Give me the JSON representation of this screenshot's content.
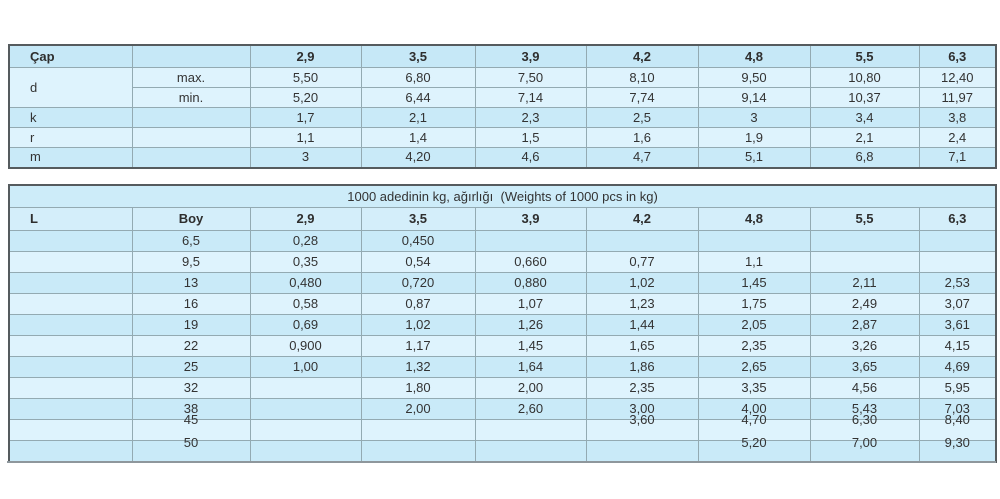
{
  "colors": {
    "header_bg": "#c6e8f7",
    "subheader_bg": "#d4eefa",
    "title_bg": "#cdecf9",
    "row_light": "#def3fd",
    "row_mid": "#c9eaf8",
    "grid_border": "#93aab2",
    "outer_border": "#555b5e",
    "shadow_line": "#8e979c",
    "text": "#333333"
  },
  "dimensions_table": {
    "corner_label": "Çap",
    "col_headers": [
      "2,9",
      "3,5",
      "3,9",
      "4,2",
      "4,8",
      "5,5",
      "6,3"
    ],
    "rows": [
      {
        "label": "d",
        "sub": "max.",
        "values": [
          "5,50",
          "6,80",
          "7,50",
          "8,10",
          "9,50",
          "10,80",
          "12,40"
        ]
      },
      {
        "label": "",
        "sub": "min.",
        "values": [
          "5,20",
          "6,44",
          "7,14",
          "7,74",
          "9,14",
          "10,37",
          "11,97"
        ]
      },
      {
        "label": "k",
        "sub": "",
        "values": [
          "1,7",
          "2,1",
          "2,3",
          "2,5",
          "3",
          "3,4",
          "3,8"
        ]
      },
      {
        "label": "r",
        "sub": "",
        "values": [
          "1,1",
          "1,4",
          "1,5",
          "1,6",
          "1,9",
          "2,1",
          "2,4"
        ]
      },
      {
        "label": "m",
        "sub": "",
        "values": [
          "3",
          "4,20",
          "4,6",
          "4,7",
          "5,1",
          "6,8",
          "7,1"
        ]
      }
    ]
  },
  "weights_table": {
    "title": "1000 adedinin kg, ağırlığı  (Weights of 1000 pcs in kg)",
    "col1_header": "L",
    "col2_header": "Boy",
    "col_headers": [
      "2,9",
      "3,5",
      "3,9",
      "4,2",
      "4,8",
      "5,5",
      "6,3"
    ],
    "rows": [
      {
        "l": "",
        "boy": "6,5",
        "values": [
          "0,28",
          "0,450",
          "",
          "",
          "",
          "",
          ""
        ]
      },
      {
        "l": "",
        "boy": "9,5",
        "values": [
          "0,35",
          "0,54",
          "0,660",
          "0,77",
          "1,1",
          "",
          ""
        ]
      },
      {
        "l": "",
        "boy": "13",
        "values": [
          "0,480",
          "0,720",
          "0,880",
          "1,02",
          "1,45",
          "2,11",
          "2,53"
        ]
      },
      {
        "l": "",
        "boy": "16",
        "values": [
          "0,58",
          "0,87",
          "1,07",
          "1,23",
          "1,75",
          "2,49",
          "3,07"
        ]
      },
      {
        "l": "",
        "boy": "19",
        "values": [
          "0,69",
          "1,02",
          "1,26",
          "1,44",
          "2,05",
          "2,87",
          "3,61"
        ]
      },
      {
        "l": "",
        "boy": "22",
        "values": [
          "0,900",
          "1,17",
          "1,45",
          "1,65",
          "2,35",
          "3,26",
          "4,15"
        ]
      },
      {
        "l": "",
        "boy": "25",
        "values": [
          "1,00",
          "1,32",
          "1,64",
          "1,86",
          "2,65",
          "3,65",
          "4,69"
        ]
      },
      {
        "l": "",
        "boy": "32",
        "values": [
          "",
          "1,80",
          "2,00",
          "2,35",
          "3,35",
          "4,56",
          "5,95"
        ]
      },
      {
        "l": "",
        "boy": "38",
        "values": [
          "",
          "2,00",
          "2,60",
          "3,00",
          "4,00",
          "5,43",
          "7,03"
        ]
      },
      {
        "l": "",
        "boy": "45",
        "values": [
          "",
          "",
          "",
          "3,60",
          "4,70",
          "6,30",
          "8,40"
        ]
      },
      {
        "l": "",
        "boy": "50",
        "values": [
          "",
          "",
          "",
          "",
          "5,20",
          "7,00",
          "9,30"
        ]
      }
    ]
  }
}
